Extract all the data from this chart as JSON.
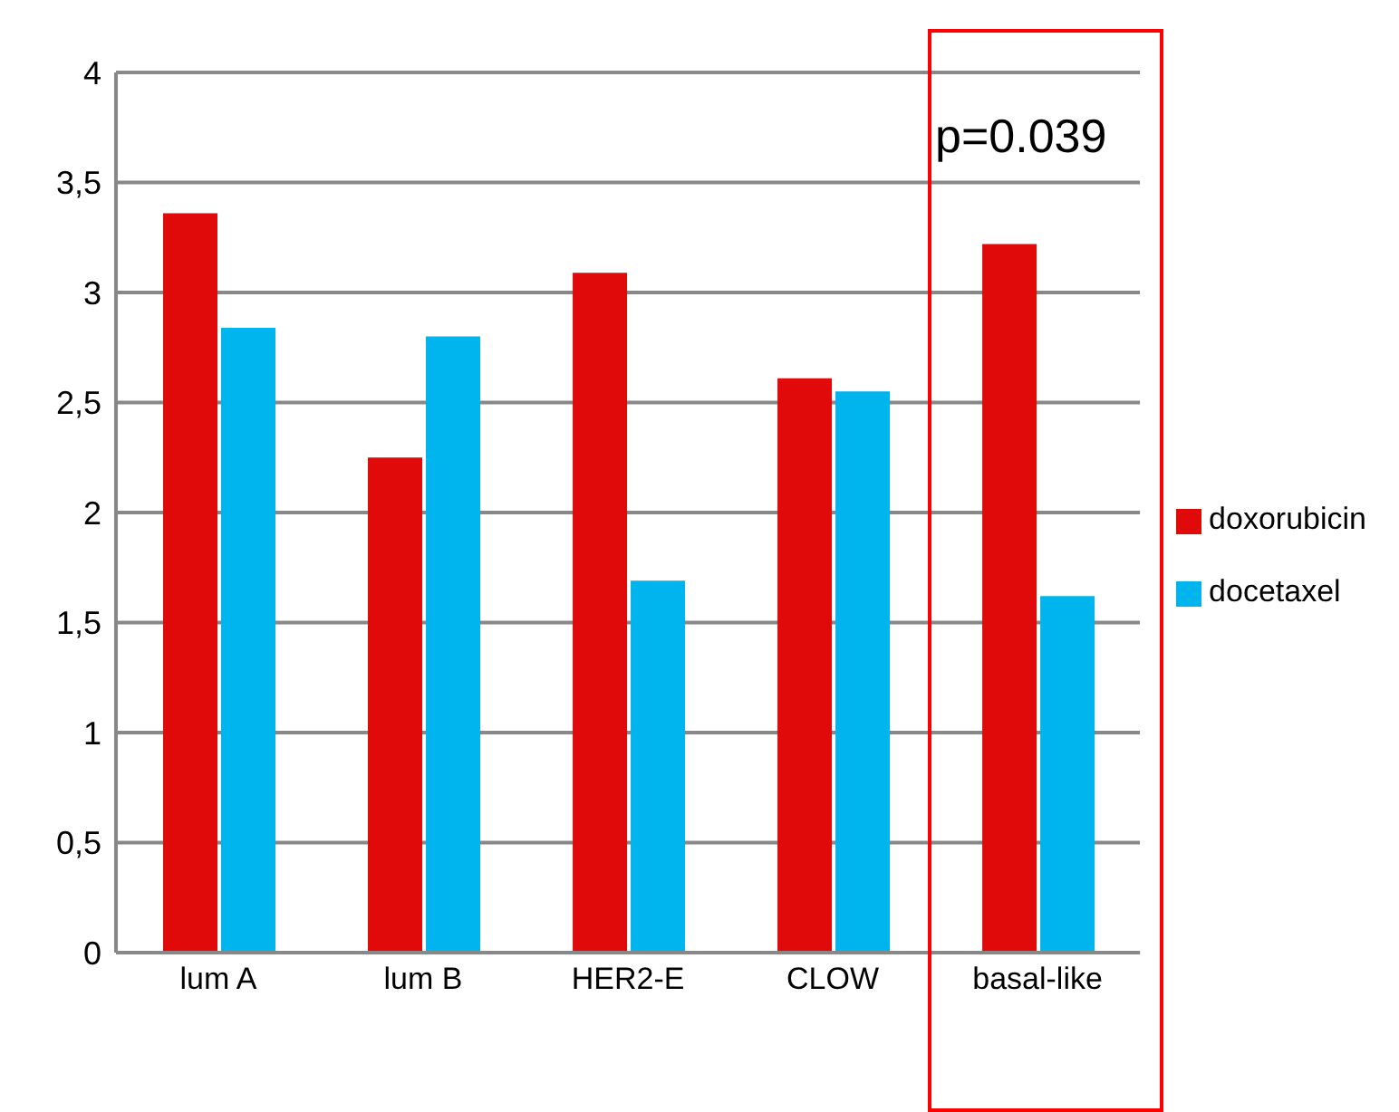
{
  "chart_data": {
    "type": "bar",
    "categories": [
      "lum A",
      "lum B",
      "HER2-E",
      "CLOW",
      "basal-like"
    ],
    "series": [
      {
        "name": "doxorubicin",
        "color": "#e00a0a",
        "values": [
          3.36,
          2.25,
          3.09,
          2.61,
          3.22
        ]
      },
      {
        "name": "docetaxel",
        "color": "#00b4ee",
        "values": [
          2.84,
          2.8,
          1.69,
          2.55,
          1.62
        ]
      }
    ],
    "ylim": [
      0,
      4
    ],
    "yticks": [
      0,
      {
        "value": 0.5,
        "label": "0,5"
      },
      1,
      {
        "value": 1.5,
        "label": "1,5"
      },
      2,
      {
        "value": 2.5,
        "label": "2,5"
      },
      3,
      {
        "value": 3.5,
        "label": "3,5"
      },
      4
    ],
    "grid": "y",
    "legend": "right",
    "annotations": [
      "p=0.039"
    ]
  }
}
